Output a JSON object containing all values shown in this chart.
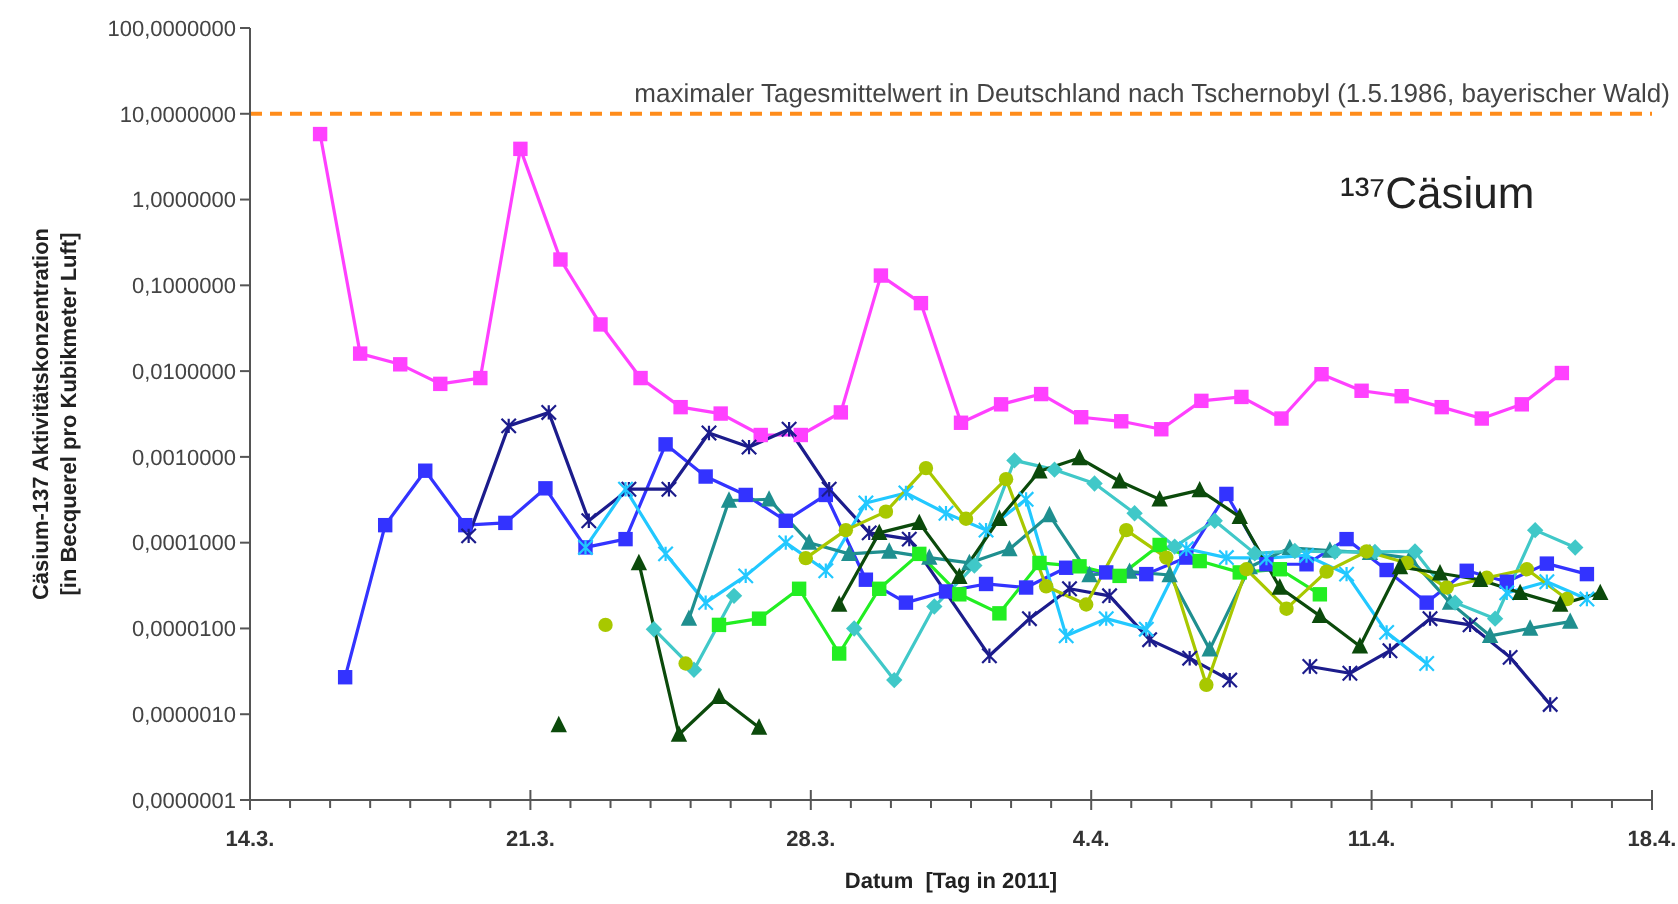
{
  "chart_data": {
    "type": "line",
    "title": "¹³⁷Cäsium",
    "xlabel": "Datum  [Tag in 2011]",
    "ylabel": "Cäsium-137 Aktivitätskonzentration\n[in Becquerel pro Kubikmeter Luft]",
    "log": true,
    "ylim": [
      1e-07,
      100
    ],
    "yticks": [
      {
        "value": 100,
        "label": "100,0000000"
      },
      {
        "value": 10,
        "label": "10,0000000"
      },
      {
        "value": 1,
        "label": "1,0000000"
      },
      {
        "value": 0.1,
        "label": "0,1000000"
      },
      {
        "value": 0.01,
        "label": "0,0100000"
      },
      {
        "value": 0.001,
        "label": "0,0010000"
      },
      {
        "value": 0.0001,
        "label": "0,0001000"
      },
      {
        "value": 1e-05,
        "label": "0,0000100"
      },
      {
        "value": 1e-06,
        "label": "0,0000010"
      },
      {
        "value": 1e-07,
        "label": "0,0000001"
      }
    ],
    "xlim": [
      "2011-03-14",
      "2011-04-18"
    ],
    "xticks": [
      {
        "value": "2011-03-14",
        "label": "14.3."
      },
      {
        "value": "2011-03-15",
        "label": null
      },
      {
        "value": "2011-03-16",
        "label": null
      },
      {
        "value": "2011-03-17",
        "label": null
      },
      {
        "value": "2011-03-18",
        "label": null
      },
      {
        "value": "2011-03-19",
        "label": null
      },
      {
        "value": "2011-03-20",
        "label": null
      },
      {
        "value": "2011-03-21",
        "label": "21.3."
      },
      {
        "value": "2011-03-22",
        "label": null
      },
      {
        "value": "2011-03-23",
        "label": null
      },
      {
        "value": "2011-03-24",
        "label": null
      },
      {
        "value": "2011-03-25",
        "label": null
      },
      {
        "value": "2011-03-26",
        "label": null
      },
      {
        "value": "2011-03-27",
        "label": null
      },
      {
        "value": "2011-03-28",
        "label": "28.3."
      },
      {
        "value": "2011-03-29",
        "label": null
      },
      {
        "value": "2011-03-30",
        "label": null
      },
      {
        "value": "2011-03-31",
        "label": null
      },
      {
        "value": "2011-04-01",
        "label": null
      },
      {
        "value": "2011-04-02",
        "label": null
      },
      {
        "value": "2011-04-03",
        "label": null
      },
      {
        "value": "2011-04-04",
        "label": "4.4."
      },
      {
        "value": "2011-04-05",
        "label": null
      },
      {
        "value": "2011-04-06",
        "label": null
      },
      {
        "value": "2011-04-07",
        "label": null
      },
      {
        "value": "2011-04-08",
        "label": null
      },
      {
        "value": "2011-04-09",
        "label": null
      },
      {
        "value": "2011-04-10",
        "label": null
      },
      {
        "value": "2011-04-11",
        "label": "11.4."
      },
      {
        "value": "2011-04-12",
        "label": null
      },
      {
        "value": "2011-04-13",
        "label": null
      },
      {
        "value": "2011-04-14",
        "label": null
      },
      {
        "value": "2011-04-15",
        "label": null
      },
      {
        "value": "2011-04-16",
        "label": null
      },
      {
        "value": "2011-04-17",
        "label": null
      },
      {
        "value": "2011-04-18",
        "label": "18.4."
      }
    ],
    "ref_lines": [
      {
        "axis": "y",
        "value": 10,
        "label": "maximaler Tagesmittelwert in Deutschland nach Tschernobyl (1.5.1986, bayerischer Wald)",
        "color": "#ff8c1a",
        "line_style": "dashed"
      }
    ],
    "series": [
      {
        "color": "#ff40ff",
        "marker": "square",
        "x": [
          "2011-03-15T18:00",
          "2011-03-16T18:00",
          "2011-03-17T18:00",
          "2011-03-18T18:00",
          "2011-03-19T18:00",
          "2011-03-20T18:00",
          "2011-03-21T18:00",
          "2011-03-22T18:00",
          "2011-03-23T18:00",
          "2011-03-24T18:00",
          "2011-03-25T18:00",
          "2011-03-26T18:00",
          "2011-03-27T18:00",
          "2011-03-28T18:00",
          "2011-03-29T18:00",
          "2011-03-30T18:00",
          "2011-03-31T18:00",
          "2011-04-01T18:00",
          "2011-04-02T18:00",
          "2011-04-03T18:00",
          "2011-04-04T18:00",
          "2011-04-05T18:00",
          "2011-04-06T18:00",
          "2011-04-07T18:00",
          "2011-04-08T18:00",
          "2011-04-09T18:00",
          "2011-04-10T18:00",
          "2011-04-11T18:00",
          "2011-04-12T18:00",
          "2011-04-13T18:00",
          "2011-04-14T18:00",
          "2011-04-15T18:00"
        ],
        "values": [
          5.8,
          0.016,
          0.012,
          0.0071,
          0.0083,
          3.9,
          0.2,
          0.035,
          0.0083,
          0.0038,
          0.0032,
          0.0018,
          0.0018,
          0.0033,
          0.13,
          0.062,
          0.0025,
          0.0041,
          0.0054,
          0.0029,
          0.0026,
          0.0021,
          0.0045,
          0.005,
          0.0028,
          0.0092,
          0.0059,
          0.0051,
          0.0038,
          0.0028,
          0.0041,
          0.0095
        ]
      },
      {
        "color": "#3333ff",
        "marker": "square",
        "x": [
          "2011-03-16T09:00",
          "2011-03-17T09:00",
          "2011-03-18T09:00",
          "2011-03-19T09:00",
          "2011-03-20T09:00",
          "2011-03-21T09:00",
          "2011-03-22T09:00",
          "2011-03-23T09:00",
          "2011-03-24T09:00",
          "2011-03-25T09:00",
          "2011-03-26T09:00",
          "2011-03-27T09:00",
          "2011-03-28T09:00",
          "2011-03-29T09:00",
          "2011-03-30T09:00",
          "2011-03-31T09:00",
          "2011-04-01T09:00",
          "2011-04-02T09:00",
          "2011-04-03T09:00",
          "2011-04-04T09:00",
          "2011-04-05T09:00",
          "2011-04-06T09:00",
          "2011-04-07T09:00",
          "2011-04-08T09:00",
          "2011-04-09T09:00",
          "2011-04-10T09:00",
          "2011-04-11T09:00",
          "2011-04-12T09:00",
          "2011-04-13T09:00",
          "2011-04-14T09:00",
          "2011-04-15T09:00",
          "2011-04-16T09:00"
        ],
        "values": [
          2.7e-06,
          0.00016,
          0.00069,
          0.00016,
          0.00017,
          0.00043,
          8.8e-05,
          0.00011,
          0.0014,
          0.00059,
          0.00036,
          0.00018,
          0.00036,
          3.7e-05,
          2e-05,
          2.7e-05,
          3.3e-05,
          3e-05,
          5.1e-05,
          4.5e-05,
          4.3e-05,
          6.7e-05,
          0.00037,
          5.6e-05,
          5.6e-05,
          0.00011,
          4.8e-05,
          2e-05,
          4.7e-05,
          3.5e-05,
          5.7e-05,
          4.3e-05
        ]
      },
      {
        "color": "#1c1c8c",
        "marker": "cross",
        "x": [
          "2011-03-19T11:00",
          "2011-03-20T11:00",
          "2011-03-21T11:00",
          "2011-03-22T11:00",
          "2011-03-23T11:00",
          "2011-03-24T11:00",
          "2011-03-25T11:00",
          "2011-03-26T11:00",
          "2011-03-27T11:00",
          "2011-03-28T11:00",
          "2011-03-29T11:00",
          "2011-03-30T11:00",
          "2011-04-01T11:00",
          "2011-04-02T11:00",
          "2011-04-03T11:00",
          "2011-04-04T11:00",
          "2011-04-05T11:00",
          "2011-04-06T11:00",
          "2011-04-07T11:00",
          "2011-04-08T11:00",
          "2011-04-09T11:00",
          "2011-04-10T11:00",
          "2011-04-11T11:00",
          "2011-04-12T11:00",
          "2011-04-13T11:00",
          "2011-04-14T11:00",
          "2011-04-15T11:00"
        ],
        "values": [
          0.00012,
          0.0023,
          0.0033,
          0.00018,
          0.00042,
          0.00042,
          0.0019,
          0.0013,
          0.0021,
          0.00042,
          0.00013,
          0.00011,
          4.8e-06,
          1.3e-05,
          2.9e-05,
          2.4e-05,
          7.4e-06,
          4.5e-06,
          2.5e-06,
          null,
          3.6e-06,
          3e-06,
          5.5e-06,
          1.3e-05,
          1.1e-05,
          4.6e-06,
          1.3e-06
        ]
      },
      {
        "color": "#22c8ff",
        "marker": "cross",
        "x": [
          "2011-03-22T09:00",
          "2011-03-23T09:00",
          "2011-03-24T09:00",
          "2011-03-25T09:00",
          "2011-03-26T09:00",
          "2011-03-27T09:00",
          "2011-03-28T09:00",
          "2011-03-29T09:00",
          "2011-03-30T09:00",
          "2011-03-31T09:00",
          "2011-04-01T09:00",
          "2011-04-02T09:00",
          "2011-04-03T09:00",
          "2011-04-04T09:00",
          "2011-04-05T09:00",
          "2011-04-06T09:00",
          "2011-04-07T09:00",
          "2011-04-08T09:00",
          "2011-04-09T09:00",
          "2011-04-10T09:00",
          "2011-04-11T09:00",
          "2011-04-12T09:00",
          "2011-04-13T09:00",
          "2011-04-14T09:00",
          "2011-04-15T09:00",
          "2011-04-16T09:00"
        ],
        "values": [
          8.8e-05,
          0.00042,
          7.4e-05,
          2e-05,
          4.1e-05,
          0.0001,
          4.7e-05,
          0.00029,
          0.00038,
          0.00022,
          0.00014,
          0.00032,
          8.2e-06,
          1.3e-05,
          9.8e-06,
          8.5e-05,
          6.7e-05,
          6.6e-05,
          7.1e-05,
          4.3e-05,
          9e-06,
          3.9e-06,
          null,
          2.6e-05,
          3.5e-05,
          2.2e-05
        ]
      },
      {
        "color": "#1f8f8f",
        "marker": "triangle",
        "x": [
          "2011-03-24T23:00",
          "2011-03-25T23:00",
          "2011-03-26T23:00",
          "2011-03-27T23:00",
          "2011-03-28T23:00",
          "2011-03-29T23:00",
          "2011-03-30T23:00",
          "2011-03-31T23:00",
          "2011-04-01T23:00",
          "2011-04-02T23:00",
          "2011-04-03T23:00",
          "2011-04-04T23:00",
          "2011-04-05T23:00",
          "2011-04-06T23:00",
          "2011-04-07T23:00",
          "2011-04-08T23:00",
          "2011-04-09T23:00",
          "2011-04-10T23:00",
          "2011-04-11T23:00",
          "2011-04-12T23:00",
          "2011-04-13T23:00",
          "2011-04-14T23:00",
          "2011-04-15T23:00"
        ],
        "values": [
          1.3e-05,
          0.00031,
          0.00032,
          0.0001,
          7.4e-05,
          7.9e-05,
          6.7e-05,
          5.8e-05,
          8.4e-05,
          0.00021,
          4.2e-05,
          4.6e-05,
          4.2e-05,
          5.7e-06,
          5.2e-05,
          8.7e-05,
          8.1e-05,
          7.6e-05,
          6.6e-05,
          2e-05,
          8.2e-06,
          1e-05,
          1.2e-05
        ]
      },
      {
        "color": "#40c8c8",
        "marker": "diamond",
        "x": [
          "2011-03-24T02:00",
          "2011-03-25T02:00",
          "2011-03-26T02:00",
          "2011-03-27T02:00",
          "2011-03-28T02:00",
          "2011-03-29T02:00",
          "2011-03-30T02:00",
          "2011-03-31T02:00",
          "2011-04-01T02:00",
          "2011-04-02T02:00",
          "2011-04-03T02:00",
          "2011-04-04T02:00",
          "2011-04-05T02:00",
          "2011-04-06T02:00",
          "2011-04-07T02:00",
          "2011-04-08T02:00",
          "2011-04-09T02:00",
          "2011-04-10T02:00",
          "2011-04-11T02:00",
          "2011-04-12T02:00",
          "2011-04-13T02:00",
          "2011-04-14T02:00",
          "2011-04-15T02:00",
          "2011-04-16T02:00"
        ],
        "values": [
          9.8e-06,
          3.3e-06,
          2.4e-05,
          null,
          null,
          1e-05,
          2.5e-06,
          1.8e-05,
          5.4e-05,
          0.00091,
          0.00071,
          0.00049,
          0.00022,
          9e-05,
          0.00018,
          7.5e-05,
          8e-05,
          7.8e-05,
          7.8e-05,
          7.9e-05,
          2e-05,
          1.3e-05,
          0.00014,
          8.8e-05
        ]
      },
      {
        "color": "#22ee22",
        "marker": "square",
        "x": [
          "2011-03-25T17:00",
          "2011-03-26T17:00",
          "2011-03-27T17:00",
          "2011-03-28T17:00",
          "2011-03-29T17:00",
          "2011-03-30T17:00",
          "2011-03-31T17:00",
          "2011-04-01T17:00",
          "2011-04-02T17:00",
          "2011-04-03T17:00",
          "2011-04-04T17:00",
          "2011-04-05T17:00",
          "2011-04-06T17:00",
          "2011-04-07T17:00",
          "2011-04-08T17:00",
          "2011-04-09T17:00"
        ],
        "values": [
          1.1e-05,
          1.3e-05,
          2.9e-05,
          5.1e-06,
          2.9e-05,
          7.4e-05,
          2.5e-05,
          1.5e-05,
          5.8e-05,
          5.3e-05,
          4.1e-05,
          9.4e-05,
          6.1e-05,
          4.5e-05,
          4.9e-05,
          2.5e-05
        ]
      },
      {
        "color": "#a8c800",
        "marker": "circle",
        "x": [
          "2011-03-22T21:00",
          "2011-03-23T21:00",
          "2011-03-24T21:00",
          "2011-03-25T21:00",
          "2011-03-26T21:00",
          "2011-03-27T21:00",
          "2011-03-28T21:00",
          "2011-03-29T21:00",
          "2011-03-30T21:00",
          "2011-03-31T21:00",
          "2011-04-01T21:00",
          "2011-04-02T21:00",
          "2011-04-03T21:00",
          "2011-04-04T21:00",
          "2011-04-05T21:00",
          "2011-04-06T21:00",
          "2011-04-07T21:00",
          "2011-04-08T21:00",
          "2011-04-09T21:00",
          "2011-04-10T21:00",
          "2011-04-11T21:00",
          "2011-04-12T21:00",
          "2011-04-13T21:00",
          "2011-04-14T21:00",
          "2011-04-15T21:00"
        ],
        "values": [
          1.1e-05,
          null,
          3.9e-06,
          null,
          null,
          6.6e-05,
          0.00014,
          0.00023,
          0.00074,
          0.00019,
          0.00055,
          3.1e-05,
          1.9e-05,
          0.00014,
          6.7e-05,
          2.2e-06,
          4.9e-05,
          1.7e-05,
          4.6e-05,
          7.9e-05,
          5.8e-05,
          3e-05,
          3.9e-05,
          4.9e-05,
          2.2e-05
        ]
      },
      {
        "color": "#0b4a0b",
        "marker": "triangle",
        "x": [
          "2011-03-21T17:00",
          "2011-03-22T17:00",
          "2011-03-23T17:00",
          "2011-03-24T17:00",
          "2011-03-25T17:00",
          "2011-03-26T17:00",
          "2011-03-27T17:00",
          "2011-03-28T17:00",
          "2011-03-29T17:00",
          "2011-03-30T17:00",
          "2011-03-31T17:00",
          "2011-04-01T17:00",
          "2011-04-02T17:00",
          "2011-04-03T17:00",
          "2011-04-04T17:00",
          "2011-04-05T17:00",
          "2011-04-06T17:00",
          "2011-04-07T17:00",
          "2011-04-08T17:00",
          "2011-04-09T17:00",
          "2011-04-10T17:00",
          "2011-04-11T17:00",
          "2011-04-12T17:00",
          "2011-04-13T17:00",
          "2011-04-14T17:00",
          "2011-04-15T17:00",
          "2011-04-16T17:00"
        ],
        "values": [
          7.5e-07,
          null,
          5.8e-05,
          5.8e-07,
          1.6e-06,
          7e-07,
          null,
          1.9e-05,
          0.00013,
          0.00017,
          4e-05,
          0.00019,
          0.00068,
          0.00097,
          0.00052,
          0.00032,
          0.00041,
          0.0002,
          3e-05,
          1.4e-05,
          6.2e-06,
          5.2e-05,
          4.4e-05,
          3.7e-05,
          2.6e-05,
          1.9e-05,
          2.6e-05
        ]
      }
    ]
  }
}
